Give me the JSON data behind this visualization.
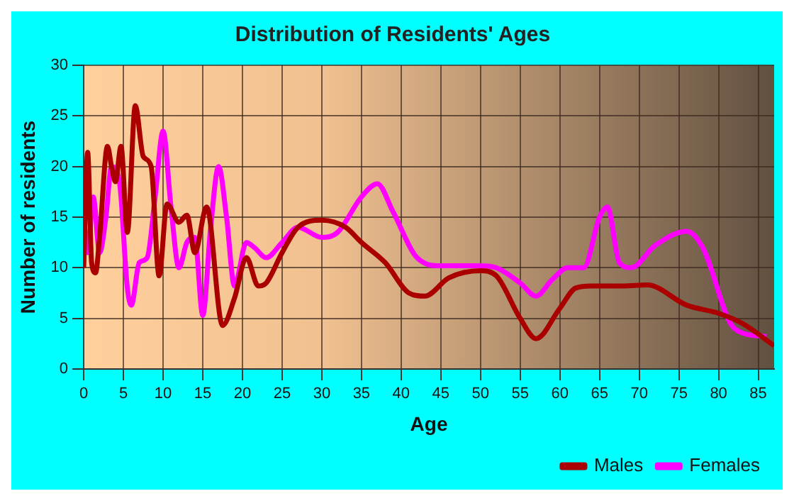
{
  "chart_data": {
    "type": "line",
    "title": "Distribution of Residents' Ages",
    "xlabel": "Age",
    "ylabel": "Number of residents",
    "xlim": [
      0,
      87
    ],
    "xticks": [
      0,
      5,
      10,
      15,
      20,
      25,
      30,
      35,
      40,
      45,
      50,
      55,
      60,
      65,
      70,
      75,
      80,
      85
    ],
    "ylim": [
      0,
      30
    ],
    "yticks": [
      0,
      5,
      10,
      15,
      20,
      25,
      30
    ],
    "grid": true,
    "legend": "bottom right",
    "marker": "none",
    "line_style": "solid",
    "series": [
      {
        "name": "Males",
        "color": "#aa0000",
        "x": [
          0,
          0.5,
          1,
          1.5,
          2,
          3,
          3.5,
          4,
          4.7,
          5.5,
          6.5,
          7.5,
          8.5,
          9.5,
          10.5,
          12,
          13,
          14,
          15.5,
          17.5,
          19,
          20.5,
          22,
          23,
          25,
          27,
          30,
          33,
          35,
          38,
          41,
          43,
          46,
          50,
          52,
          55,
          57,
          60,
          62,
          64,
          68,
          71,
          76,
          80,
          83,
          87
        ],
        "values": [
          10,
          21.4,
          10.5,
          9.5,
          13,
          22,
          20,
          18.5,
          22,
          13.5,
          26,
          21,
          20,
          9.2,
          16.3,
          14.5,
          15.2,
          11.5,
          16,
          4.3,
          7,
          11,
          8.2,
          8.5,
          11.5,
          14,
          14.7,
          14,
          12.5,
          10.5,
          7.5,
          7.2,
          9,
          9.7,
          9.2,
          5,
          3,
          6,
          8,
          8.2,
          8.2,
          8.3,
          6.3,
          5.5,
          4.5,
          2.3
        ]
      },
      {
        "name": "Females",
        "color": "#ff00ff",
        "x": [
          0,
          0.5,
          1.2,
          2,
          2.8,
          3.5,
          4.5,
          5.5,
          6,
          7,
          8,
          9,
          10,
          11,
          12,
          13,
          14,
          15,
          16,
          17,
          18,
          19,
          20.5,
          21.5,
          23,
          25,
          27,
          30,
          32,
          35,
          37,
          39,
          42,
          45,
          50,
          52,
          55,
          57,
          59,
          61,
          63,
          65,
          66,
          67.5,
          69,
          72,
          76,
          78,
          82,
          86
        ],
        "values": [
          15,
          11.5,
          17,
          11.5,
          15,
          20,
          18.5,
          8,
          6.3,
          10.5,
          11,
          17,
          23.5,
          16,
          10,
          12.5,
          13,
          5.3,
          14,
          20,
          15,
          8.2,
          12.5,
          12,
          11,
          12.5,
          14,
          13,
          13.5,
          17,
          18.3,
          15.5,
          11,
          10.2,
          10.2,
          10,
          8.5,
          7.2,
          8.8,
          10,
          10,
          15,
          16,
          10.5,
          10,
          12.2,
          13.6,
          12,
          4,
          3.2
        ]
      }
    ]
  }
}
